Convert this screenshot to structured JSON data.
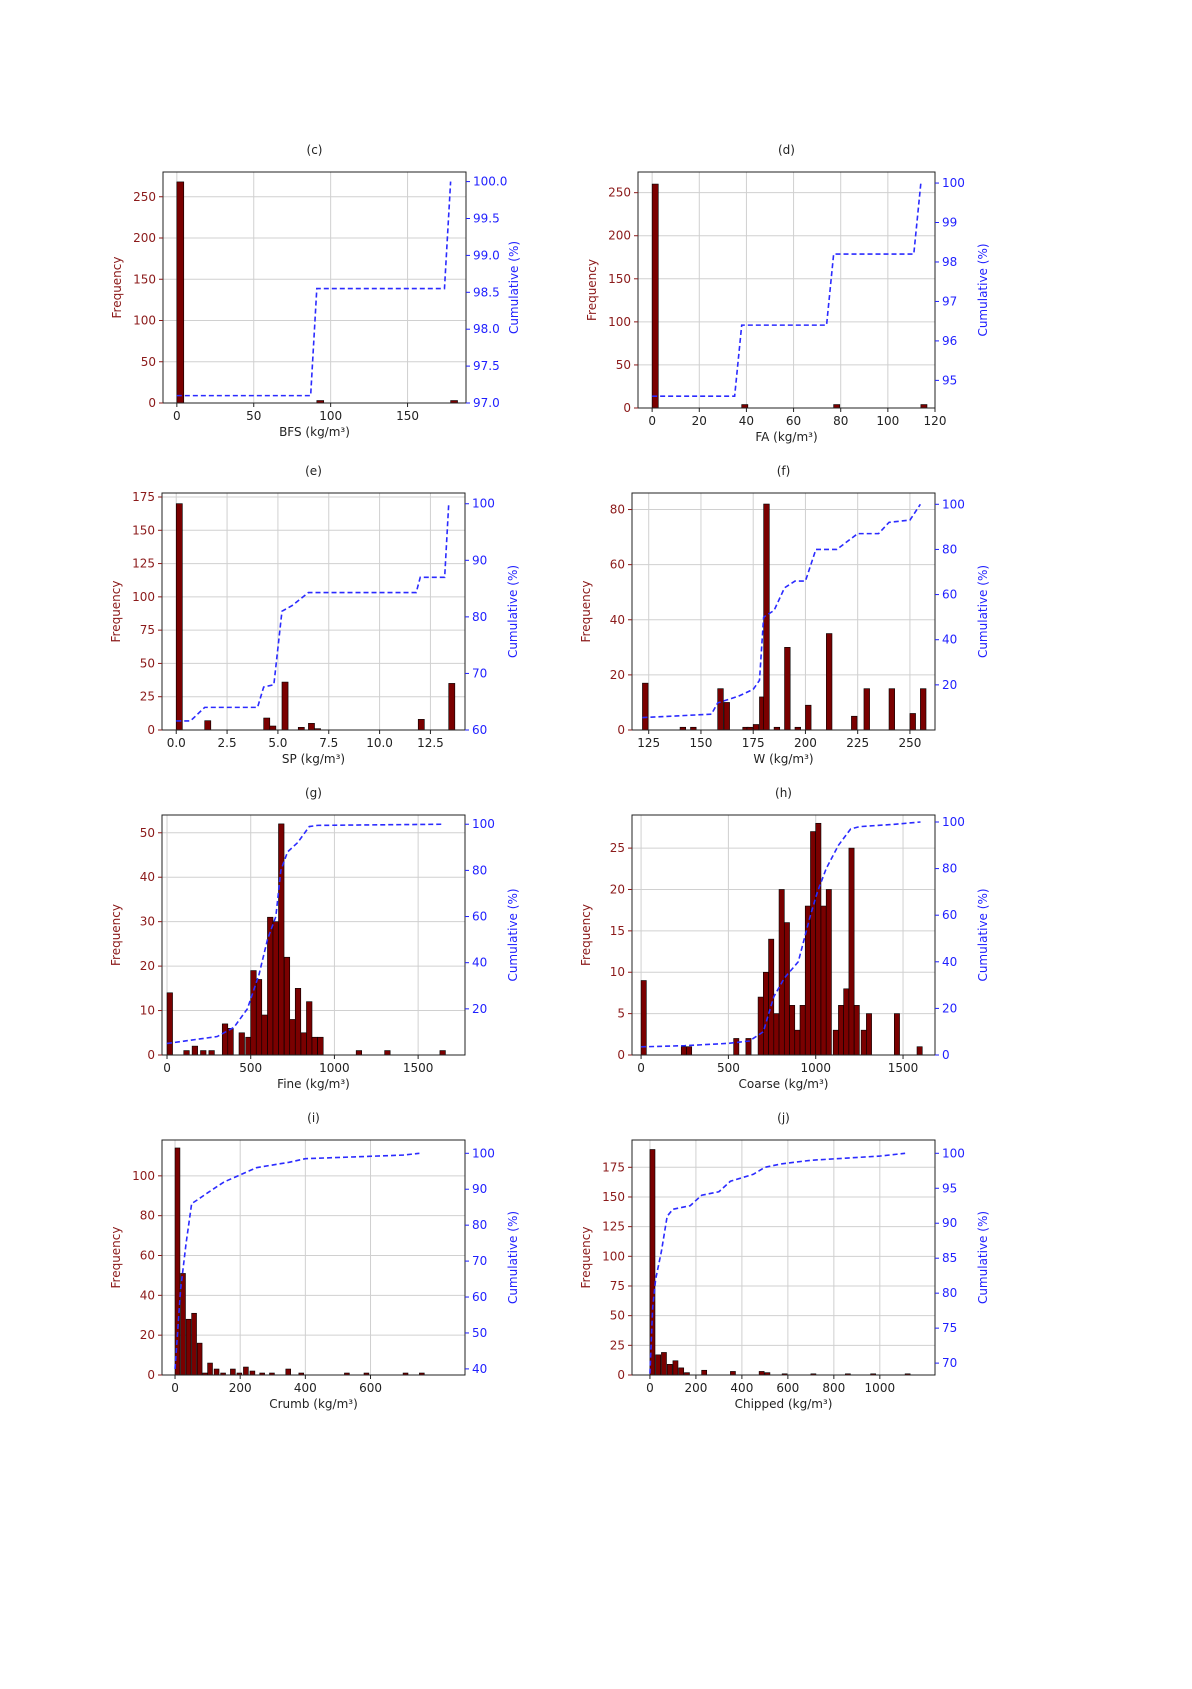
{
  "colors": {
    "bar": "#7a0000",
    "bar_edge": "#000000",
    "left_axis": "#8b1a1a",
    "right_axis": "#1f1fff",
    "cumulative": "#2b2bff",
    "grid": "#d0d0d0"
  },
  "chart_data": [
    {
      "type": "bar",
      "panel": "(c)",
      "xlabel": "BFS (kg/m³)",
      "ylabel": "Frequency",
      "y2label": "Cumulative (%)",
      "xlim": [
        -9,
        188
      ],
      "ylim": [
        0,
        280
      ],
      "y2lim": [
        97.0,
        100.13
      ],
      "bin_width": 4.5,
      "xticks": [
        "0",
        "50",
        "100",
        "150"
      ],
      "xtick_values": [
        0,
        50,
        100,
        150
      ],
      "yticks": [
        0,
        50,
        100,
        150,
        200,
        250
      ],
      "y2ticks": [
        "97.0",
        "97.5",
        "98.0",
        "98.5",
        "99.0",
        "99.5",
        "100.0"
      ],
      "y2tick_values": [
        97,
        97.5,
        98,
        98.5,
        99,
        99.5,
        100
      ],
      "bins": [
        [
          0,
          268
        ],
        [
          91,
          3
        ],
        [
          178,
          3
        ]
      ],
      "cumulative": [
        [
          0,
          97.1
        ],
        [
          87,
          97.1
        ],
        [
          91,
          98.55
        ],
        [
          174,
          98.55
        ],
        [
          178,
          100
        ]
      ]
    },
    {
      "type": "bar",
      "panel": "(d)",
      "xlabel": "FA (kg/m³)",
      "ylabel": "Frequency",
      "y2label": "Cumulative (%)",
      "xlim": [
        -6,
        120
      ],
      "ylim": [
        0,
        274
      ],
      "y2lim": [
        94.3,
        100.28
      ],
      "bin_width": 2.6,
      "xticks": [
        "0",
        "20",
        "40",
        "60",
        "80",
        "100",
        "120"
      ],
      "xtick_values": [
        0,
        20,
        40,
        60,
        80,
        100,
        120
      ],
      "yticks": [
        0,
        50,
        100,
        150,
        200,
        250
      ],
      "y2ticks": [
        "95",
        "96",
        "97",
        "98",
        "99",
        "100"
      ],
      "y2tick_values": [
        95,
        96,
        97,
        98,
        99,
        100
      ],
      "bins": [
        [
          0,
          260
        ],
        [
          38,
          4
        ],
        [
          77,
          4
        ],
        [
          114,
          4
        ]
      ],
      "cumulative": [
        [
          0,
          94.6
        ],
        [
          35,
          94.6
        ],
        [
          38,
          96.4
        ],
        [
          74,
          96.4
        ],
        [
          77,
          98.2
        ],
        [
          111,
          98.2
        ],
        [
          114,
          100
        ]
      ]
    },
    {
      "type": "bar",
      "panel": "(e)",
      "xlabel": "SP (kg/m³)",
      "ylabel": "Frequency",
      "y2label": "Cumulative (%)",
      "xlim": [
        -0.7,
        14.2
      ],
      "ylim": [
        0,
        178
      ],
      "y2lim": [
        60,
        101.9
      ],
      "bin_width": 0.3,
      "xticks": [
        "0.0",
        "2.5",
        "5.0",
        "7.5",
        "10.0",
        "12.5"
      ],
      "xtick_values": [
        0,
        2.5,
        5,
        7.5,
        10,
        12.5
      ],
      "yticks": [
        0,
        25,
        50,
        75,
        100,
        125,
        150,
        175
      ],
      "y2ticks": [
        "60",
        "70",
        "80",
        "90",
        "100"
      ],
      "y2tick_values": [
        60,
        70,
        80,
        90,
        100
      ],
      "bins": [
        [
          0,
          170
        ],
        [
          1.4,
          7
        ],
        [
          4.3,
          9
        ],
        [
          4.6,
          3
        ],
        [
          5.2,
          36
        ],
        [
          6.0,
          2
        ],
        [
          6.5,
          5
        ],
        [
          6.8,
          1
        ],
        [
          11.9,
          8
        ],
        [
          13.4,
          35
        ]
      ],
      "cumulative": [
        [
          0,
          61.6
        ],
        [
          0.7,
          61.6
        ],
        [
          1.4,
          64
        ],
        [
          4.0,
          64
        ],
        [
          4.3,
          67.6
        ],
        [
          4.8,
          68
        ],
        [
          5.2,
          81
        ],
        [
          5.7,
          82
        ],
        [
          6.5,
          84.3
        ],
        [
          11.8,
          84.3
        ],
        [
          12.0,
          87
        ],
        [
          13.2,
          87
        ],
        [
          13.4,
          100
        ]
      ]
    },
    {
      "type": "bar",
      "panel": "(f)",
      "xlabel": "W (kg/m³)",
      "ylabel": "Frequency",
      "y2label": "Cumulative (%)",
      "xlim": [
        117,
        262
      ],
      "ylim": [
        0,
        86
      ],
      "y2lim": [
        0,
        105
      ],
      "bin_width": 2.7,
      "xticks": [
        "125",
        "150",
        "175",
        "200",
        "225",
        "250"
      ],
      "xtick_values": [
        125,
        150,
        175,
        200,
        225,
        250
      ],
      "yticks": [
        0,
        20,
        40,
        60,
        80
      ],
      "y2ticks": [
        "20",
        "40",
        "60",
        "80",
        "100"
      ],
      "y2tick_values": [
        20,
        40,
        60,
        80,
        100
      ],
      "bins": [
        [
          122,
          17
        ],
        [
          140,
          1
        ],
        [
          145,
          1
        ],
        [
          158,
          15
        ],
        [
          161,
          10
        ],
        [
          170,
          1
        ],
        [
          172,
          1
        ],
        [
          175,
          2
        ],
        [
          178,
          12
        ],
        [
          180,
          82
        ],
        [
          185,
          1
        ],
        [
          190,
          30
        ],
        [
          195,
          1
        ],
        [
          200,
          9
        ],
        [
          210,
          35
        ],
        [
          222,
          5
        ],
        [
          228,
          15
        ],
        [
          240,
          15
        ],
        [
          250,
          6
        ],
        [
          255,
          15
        ]
      ],
      "cumulative": [
        [
          122,
          5.5
        ],
        [
          155,
          7
        ],
        [
          158,
          12
        ],
        [
          168,
          15
        ],
        [
          175,
          18
        ],
        [
          178,
          22
        ],
        [
          180,
          50
        ],
        [
          185,
          53
        ],
        [
          190,
          63
        ],
        [
          195,
          66
        ],
        [
          200,
          66
        ],
        [
          205,
          80
        ],
        [
          215,
          80
        ],
        [
          225,
          87
        ],
        [
          235,
          87
        ],
        [
          240,
          92
        ],
        [
          250,
          93
        ],
        [
          255,
          100
        ]
      ]
    },
    {
      "type": "bar",
      "panel": "(g)",
      "xlabel": "Fine (kg/m³)",
      "ylabel": "Frequency",
      "y2label": "Cumulative (%)",
      "xlim": [
        -30,
        1780
      ],
      "ylim": [
        0,
        54
      ],
      "y2lim": [
        0,
        104
      ],
      "bin_width": 33,
      "xticks": [
        "0",
        "500",
        "1000",
        "1500"
      ],
      "xtick_values": [
        0,
        500,
        1000,
        1500
      ],
      "yticks": [
        0,
        10,
        20,
        30,
        40,
        50
      ],
      "y2ticks": [
        "20",
        "40",
        "60",
        "80",
        "100"
      ],
      "y2tick_values": [
        20,
        40,
        60,
        80,
        100
      ],
      "bins": [
        [
          0,
          14
        ],
        [
          100,
          1
        ],
        [
          150,
          2
        ],
        [
          200,
          1
        ],
        [
          250,
          1
        ],
        [
          330,
          7
        ],
        [
          363,
          6
        ],
        [
          430,
          5
        ],
        [
          470,
          4
        ],
        [
          500,
          19
        ],
        [
          533,
          17
        ],
        [
          566,
          9
        ],
        [
          600,
          31
        ],
        [
          633,
          30
        ],
        [
          666,
          52
        ],
        [
          700,
          22
        ],
        [
          733,
          8
        ],
        [
          766,
          15
        ],
        [
          800,
          5
        ],
        [
          833,
          12
        ],
        [
          866,
          4
        ],
        [
          900,
          4
        ],
        [
          1130,
          1
        ],
        [
          1300,
          1
        ],
        [
          1630,
          1
        ]
      ],
      "cumulative": [
        [
          0,
          5
        ],
        [
          300,
          8
        ],
        [
          400,
          12
        ],
        [
          480,
          20
        ],
        [
          550,
          35
        ],
        [
          600,
          50
        ],
        [
          650,
          60
        ],
        [
          680,
          80
        ],
        [
          720,
          88
        ],
        [
          780,
          92
        ],
        [
          850,
          99
        ],
        [
          900,
          99.5
        ],
        [
          1650,
          100
        ]
      ]
    },
    {
      "type": "bar",
      "panel": "(h)",
      "xlabel": "Coarse (kg/m³)",
      "ylabel": "Frequency",
      "y2label": "Cumulative (%)",
      "xlim": [
        -52,
        1683
      ],
      "ylim": [
        0,
        29
      ],
      "y2lim": [
        0,
        103
      ],
      "bin_width": 30,
      "xticks": [
        "0",
        "500",
        "1000",
        "1500"
      ],
      "xtick_values": [
        0,
        500,
        1000,
        1500
      ],
      "yticks": [
        0,
        5,
        10,
        15,
        20,
        25
      ],
      "y2ticks": [
        "0",
        "20",
        "40",
        "60",
        "80",
        "100"
      ],
      "y2tick_values": [
        0,
        20,
        40,
        60,
        80,
        100
      ],
      "bins": [
        [
          0,
          9
        ],
        [
          230,
          1
        ],
        [
          260,
          1
        ],
        [
          530,
          2
        ],
        [
          600,
          2
        ],
        [
          670,
          7
        ],
        [
          700,
          10
        ],
        [
          730,
          14
        ],
        [
          760,
          5
        ],
        [
          790,
          20
        ],
        [
          820,
          16
        ],
        [
          850,
          6
        ],
        [
          880,
          3
        ],
        [
          910,
          6
        ],
        [
          940,
          18
        ],
        [
          970,
          27
        ],
        [
          1000,
          28
        ],
        [
          1030,
          18
        ],
        [
          1060,
          20
        ],
        [
          1100,
          3
        ],
        [
          1130,
          6
        ],
        [
          1160,
          8
        ],
        [
          1190,
          25
        ],
        [
          1220,
          6
        ],
        [
          1260,
          3
        ],
        [
          1290,
          5
        ],
        [
          1450,
          5
        ],
        [
          1580,
          1
        ]
      ],
      "cumulative": [
        [
          0,
          3.5
        ],
        [
          250,
          4
        ],
        [
          500,
          5
        ],
        [
          620,
          6
        ],
        [
          700,
          10
        ],
        [
          760,
          25
        ],
        [
          820,
          33
        ],
        [
          900,
          40
        ],
        [
          970,
          60
        ],
        [
          1010,
          70
        ],
        [
          1060,
          80
        ],
        [
          1130,
          90
        ],
        [
          1200,
          97
        ],
        [
          1250,
          98
        ],
        [
          1450,
          99
        ],
        [
          1600,
          100
        ]
      ]
    },
    {
      "type": "bar",
      "panel": "(i)",
      "xlabel": "Crumb (kg/m³)",
      "ylabel": "Frequency",
      "y2label": "Cumulative (%)",
      "xlim": [
        -40,
        890
      ],
      "ylim": [
        0,
        118
      ],
      "y2lim": [
        38.3,
        103.7
      ],
      "bin_width": 15,
      "xticks": [
        "0",
        "200",
        "400",
        "600"
      ],
      "xtick_values": [
        0,
        200,
        400,
        600
      ],
      "yticks": [
        0,
        20,
        40,
        60,
        80,
        100
      ],
      "y2ticks": [
        "40",
        "50",
        "60",
        "70",
        "80",
        "90",
        "100"
      ],
      "y2tick_values": [
        40,
        50,
        60,
        70,
        80,
        90,
        100
      ],
      "bins": [
        [
          0,
          114
        ],
        [
          17,
          51
        ],
        [
          34,
          28
        ],
        [
          51,
          31
        ],
        [
          68,
          16
        ],
        [
          85,
          1
        ],
        [
          100,
          6
        ],
        [
          120,
          3
        ],
        [
          140,
          1
        ],
        [
          170,
          3
        ],
        [
          190,
          1
        ],
        [
          210,
          4
        ],
        [
          230,
          2
        ],
        [
          260,
          1
        ],
        [
          290,
          1
        ],
        [
          340,
          3
        ],
        [
          380,
          1
        ],
        [
          520,
          1
        ],
        [
          580,
          1
        ],
        [
          700,
          1
        ],
        [
          750,
          1
        ]
      ],
      "cumulative": [
        [
          0,
          40
        ],
        [
          17,
          62
        ],
        [
          34,
          75
        ],
        [
          51,
          86
        ],
        [
          68,
          87
        ],
        [
          100,
          89
        ],
        [
          150,
          92
        ],
        [
          200,
          94
        ],
        [
          250,
          96
        ],
        [
          350,
          97.5
        ],
        [
          400,
          98.5
        ],
        [
          550,
          99
        ],
        [
          700,
          99.5
        ],
        [
          750,
          100
        ]
      ]
    },
    {
      "type": "bar",
      "panel": "(j)",
      "xlabel": "Chipped (kg/m³)",
      "ylabel": "Frequency",
      "y2label": "Cumulative (%)",
      "xlim": [
        -78,
        1240
      ],
      "ylim": [
        0,
        198
      ],
      "y2lim": [
        68.3,
        101.9
      ],
      "bin_width": 22,
      "xticks": [
        "0",
        "200",
        "400",
        "600",
        "800",
        "1000"
      ],
      "xtick_values": [
        0,
        200,
        400,
        600,
        800,
        1000
      ],
      "yticks": [
        0,
        25,
        50,
        75,
        100,
        125,
        150,
        175
      ],
      "y2ticks": [
        "70",
        "75",
        "80",
        "85",
        "90",
        "95",
        "100"
      ],
      "y2tick_values": [
        70,
        75,
        80,
        85,
        90,
        95,
        100
      ],
      "bins": [
        [
          0,
          190
        ],
        [
          25,
          17
        ],
        [
          50,
          19
        ],
        [
          75,
          9
        ],
        [
          100,
          12
        ],
        [
          125,
          6
        ],
        [
          150,
          2
        ],
        [
          225,
          4
        ],
        [
          350,
          3
        ],
        [
          475,
          3
        ],
        [
          500,
          2
        ],
        [
          575,
          1
        ],
        [
          700,
          1
        ],
        [
          850,
          1
        ],
        [
          960,
          1
        ],
        [
          1110,
          1
        ]
      ],
      "cumulative": [
        [
          0,
          68.5
        ],
        [
          12,
          78
        ],
        [
          25,
          82
        ],
        [
          50,
          86
        ],
        [
          75,
          91
        ],
        [
          100,
          92
        ],
        [
          175,
          92.5
        ],
        [
          225,
          94
        ],
        [
          300,
          94.5
        ],
        [
          350,
          96
        ],
        [
          450,
          97
        ],
        [
          500,
          98
        ],
        [
          575,
          98.5
        ],
        [
          700,
          99
        ],
        [
          850,
          99.3
        ],
        [
          1000,
          99.6
        ],
        [
          1110,
          100
        ]
      ]
    }
  ]
}
